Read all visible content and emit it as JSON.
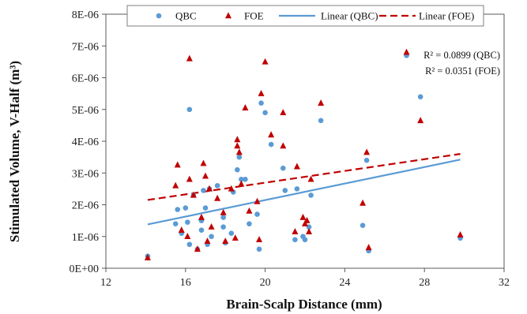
{
  "chart_data": {
    "type": "scatter",
    "xlabel": "Brain-Scalp Distance (mm)",
    "ylabel": "Stimulated Volume, V-Half (m³)",
    "xlim": [
      12,
      32
    ],
    "ylim": [
      0,
      8e-06
    ],
    "xticks": [
      12,
      16,
      20,
      24,
      28,
      32
    ],
    "xtick_labels": [
      "12",
      "16",
      "20",
      "24",
      "28",
      "32"
    ],
    "yticks": [
      0,
      1e-06,
      2e-06,
      3e-06,
      4e-06,
      5e-06,
      6e-06,
      7e-06,
      8e-06
    ],
    "ytick_labels": [
      "0E+00",
      "1E-06",
      "2E-06",
      "3E-06",
      "4E-06",
      "5E-06",
      "6E-06",
      "7E-06",
      "8E-06"
    ],
    "grid": false,
    "legend_position": "top",
    "series": [
      {
        "name": "QBC",
        "marker": "circle",
        "color": "#5b9bd5",
        "points": [
          [
            14.1,
            3.8e-07
          ],
          [
            15.5,
            1.4e-06
          ],
          [
            15.6,
            1.85e-06
          ],
          [
            15.8,
            1.1e-06
          ],
          [
            16.0,
            1.9e-06
          ],
          [
            16.1,
            1.45e-06
          ],
          [
            16.2,
            5e-06
          ],
          [
            16.2,
            7.5e-07
          ],
          [
            16.4,
            2.3e-06
          ],
          [
            16.6,
            6e-07
          ],
          [
            16.8,
            1.5e-06
          ],
          [
            16.8,
            1.2e-06
          ],
          [
            16.9,
            2.45e-06
          ],
          [
            17.0,
            1.9e-06
          ],
          [
            17.1,
            7.5e-07
          ],
          [
            17.2,
            2.5e-06
          ],
          [
            17.3,
            1e-06
          ],
          [
            17.6,
            2.6e-06
          ],
          [
            17.9,
            1.3e-06
          ],
          [
            17.9,
            1.6e-06
          ],
          [
            18.0,
            8e-07
          ],
          [
            18.3,
            1.1e-06
          ],
          [
            18.4,
            2.4e-06
          ],
          [
            18.6,
            3.1e-06
          ],
          [
            18.7,
            3.5e-06
          ],
          [
            18.8,
            2.8e-06
          ],
          [
            19.0,
            2.8e-06
          ],
          [
            19.2,
            1.4e-06
          ],
          [
            19.6,
            1.7e-06
          ],
          [
            19.7,
            6e-07
          ],
          [
            19.8,
            5.2e-06
          ],
          [
            20.0,
            4.9e-06
          ],
          [
            20.3,
            3.9e-06
          ],
          [
            20.9,
            3.15e-06
          ],
          [
            21.0,
            2.45e-06
          ],
          [
            21.5,
            9e-07
          ],
          [
            21.6,
            2.5e-06
          ],
          [
            21.9,
            1e-06
          ],
          [
            22.0,
            9e-07
          ],
          [
            22.2,
            1.3e-06
          ],
          [
            22.3,
            2.3e-06
          ],
          [
            22.8,
            4.65e-06
          ],
          [
            24.9,
            1.35e-06
          ],
          [
            25.1,
            3.4e-06
          ],
          [
            25.2,
            5.5e-07
          ],
          [
            27.1,
            6.7e-06
          ],
          [
            27.8,
            5.4e-06
          ],
          [
            29.8,
            9.5e-07
          ]
        ]
      },
      {
        "name": "FOE",
        "marker": "triangle",
        "color": "#c00000",
        "points": [
          [
            14.1,
            3.3e-07
          ],
          [
            15.5,
            2.6e-06
          ],
          [
            15.6,
            3.25e-06
          ],
          [
            15.8,
            1.2e-06
          ],
          [
            16.1,
            1e-06
          ],
          [
            16.2,
            6.6e-06
          ],
          [
            16.2,
            2.8e-06
          ],
          [
            16.4,
            2.3e-06
          ],
          [
            16.6,
            6e-07
          ],
          [
            16.8,
            1.6e-06
          ],
          [
            16.9,
            3.3e-06
          ],
          [
            17.0,
            2.9e-06
          ],
          [
            17.1,
            8.5e-07
          ],
          [
            17.2,
            2.5e-06
          ],
          [
            17.3,
            1.3e-06
          ],
          [
            17.6,
            2.2e-06
          ],
          [
            17.9,
            1.75e-06
          ],
          [
            18.0,
            8.5e-07
          ],
          [
            18.3,
            2.5e-06
          ],
          [
            18.5,
            9.5e-07
          ],
          [
            18.6,
            4.05e-06
          ],
          [
            18.6,
            3.85e-06
          ],
          [
            18.7,
            3.65e-06
          ],
          [
            18.8,
            2.65e-06
          ],
          [
            19.0,
            5.05e-06
          ],
          [
            19.2,
            1.8e-06
          ],
          [
            19.6,
            2.1e-06
          ],
          [
            19.7,
            9e-07
          ],
          [
            19.8,
            5.5e-06
          ],
          [
            20.0,
            6.5e-06
          ],
          [
            20.3,
            4.2e-06
          ],
          [
            20.9,
            4.9e-06
          ],
          [
            20.9,
            3.85e-06
          ],
          [
            21.5,
            1.15e-06
          ],
          [
            21.6,
            3.2e-06
          ],
          [
            21.9,
            1.6e-06
          ],
          [
            22.0,
            1.4e-06
          ],
          [
            22.1,
            1.5e-06
          ],
          [
            22.2,
            1.15e-06
          ],
          [
            22.3,
            2.8e-06
          ],
          [
            22.8,
            5.2e-06
          ],
          [
            24.9,
            2.05e-06
          ],
          [
            25.1,
            3.65e-06
          ],
          [
            25.2,
            6.5e-07
          ],
          [
            27.1,
            6.8e-06
          ],
          [
            27.8,
            4.65e-06
          ],
          [
            29.8,
            1.05e-06
          ]
        ]
      }
    ],
    "trendlines": [
      {
        "name": "Linear (QBC)",
        "color": "#5b9bd5",
        "dash": "solid",
        "points": [
          [
            14.1,
            1.38e-06
          ],
          [
            29.8,
            3.42e-06
          ]
        ]
      },
      {
        "name": "Linear (FOE)",
        "color": "#c00000",
        "dash": "dashed",
        "points": [
          [
            14.1,
            2.15e-06
          ],
          [
            29.8,
            3.6e-06
          ]
        ]
      }
    ],
    "annotations": [
      "R² = 0.0899 (QBC)",
      "R² = 0.0351 (FOE)"
    ]
  }
}
